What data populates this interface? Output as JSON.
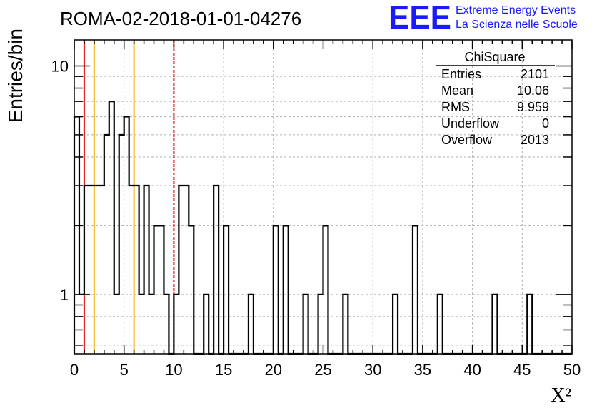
{
  "chart_data": {
    "type": "bar",
    "title": "ROMA-02-2018-01-01-04276",
    "ylabel": "Entries/bin",
    "xlabel": "X²",
    "xlim": [
      0,
      50
    ],
    "ylim": [
      0.55,
      13
    ],
    "y_scale": "log",
    "grid": true,
    "bin_width": 0.5,
    "x_ticks": [
      0,
      5,
      10,
      15,
      20,
      25,
      30,
      35,
      40,
      45,
      50
    ],
    "y_tick_labels": [
      {
        "value": 1,
        "label": "1"
      },
      {
        "value": 10,
        "label": "10"
      }
    ],
    "bins": [
      {
        "x": 0.0,
        "y": 6
      },
      {
        "x": 0.5,
        "y": 1
      },
      {
        "x": 1.0,
        "y": 3
      },
      {
        "x": 1.5,
        "y": 3
      },
      {
        "x": 2.0,
        "y": 3
      },
      {
        "x": 2.5,
        "y": 3
      },
      {
        "x": 3.0,
        "y": 5
      },
      {
        "x": 3.5,
        "y": 7
      },
      {
        "x": 4.0,
        "y": 1
      },
      {
        "x": 4.5,
        "y": 5
      },
      {
        "x": 5.0,
        "y": 6
      },
      {
        "x": 5.5,
        "y": 3
      },
      {
        "x": 6.0,
        "y": 3
      },
      {
        "x": 6.5,
        "y": 1
      },
      {
        "x": 7.0,
        "y": 3
      },
      {
        "x": 7.5,
        "y": 1
      },
      {
        "x": 8.0,
        "y": 2
      },
      {
        "x": 8.5,
        "y": 2
      },
      {
        "x": 9.0,
        "y": 1
      },
      {
        "x": 10.0,
        "y": 1
      },
      {
        "x": 10.5,
        "y": 3
      },
      {
        "x": 11.0,
        "y": 3
      },
      {
        "x": 11.5,
        "y": 2
      },
      {
        "x": 13.0,
        "y": 1
      },
      {
        "x": 14.0,
        "y": 3
      },
      {
        "x": 15.0,
        "y": 2
      },
      {
        "x": 17.5,
        "y": 1
      },
      {
        "x": 20.0,
        "y": 2
      },
      {
        "x": 21.0,
        "y": 2
      },
      {
        "x": 23.0,
        "y": 1
      },
      {
        "x": 24.5,
        "y": 1
      },
      {
        "x": 25.0,
        "y": 2
      },
      {
        "x": 27.0,
        "y": 1
      },
      {
        "x": 32.0,
        "y": 1
      },
      {
        "x": 34.0,
        "y": 2
      },
      {
        "x": 36.5,
        "y": 1
      },
      {
        "x": 42.0,
        "y": 1
      },
      {
        "x": 45.5,
        "y": 1
      }
    ],
    "reference_lines": [
      {
        "x": 1.0,
        "color": "#e8262a",
        "style": "solid"
      },
      {
        "x": 2.0,
        "color": "#f2c12e",
        "style": "solid"
      },
      {
        "x": 6.0,
        "color": "#f2c12e",
        "style": "solid"
      },
      {
        "x": 10.0,
        "color": "#e8262a",
        "style": "dashed"
      }
    ],
    "stats_box": {
      "title": "ChiSquare",
      "rows": [
        {
          "label": "Entries",
          "value": "2101"
        },
        {
          "label": "Mean",
          "value": "10.06"
        },
        {
          "label": "RMS",
          "value": "9.959"
        },
        {
          "label": "Underflow",
          "value": "0"
        },
        {
          "label": "Overflow",
          "value": "2013"
        }
      ]
    }
  },
  "logo": {
    "mark": "EEE",
    "line1": "Extreme Energy Events",
    "line2": "La Scienza nelle Scuole",
    "color": "#1a1aff"
  }
}
